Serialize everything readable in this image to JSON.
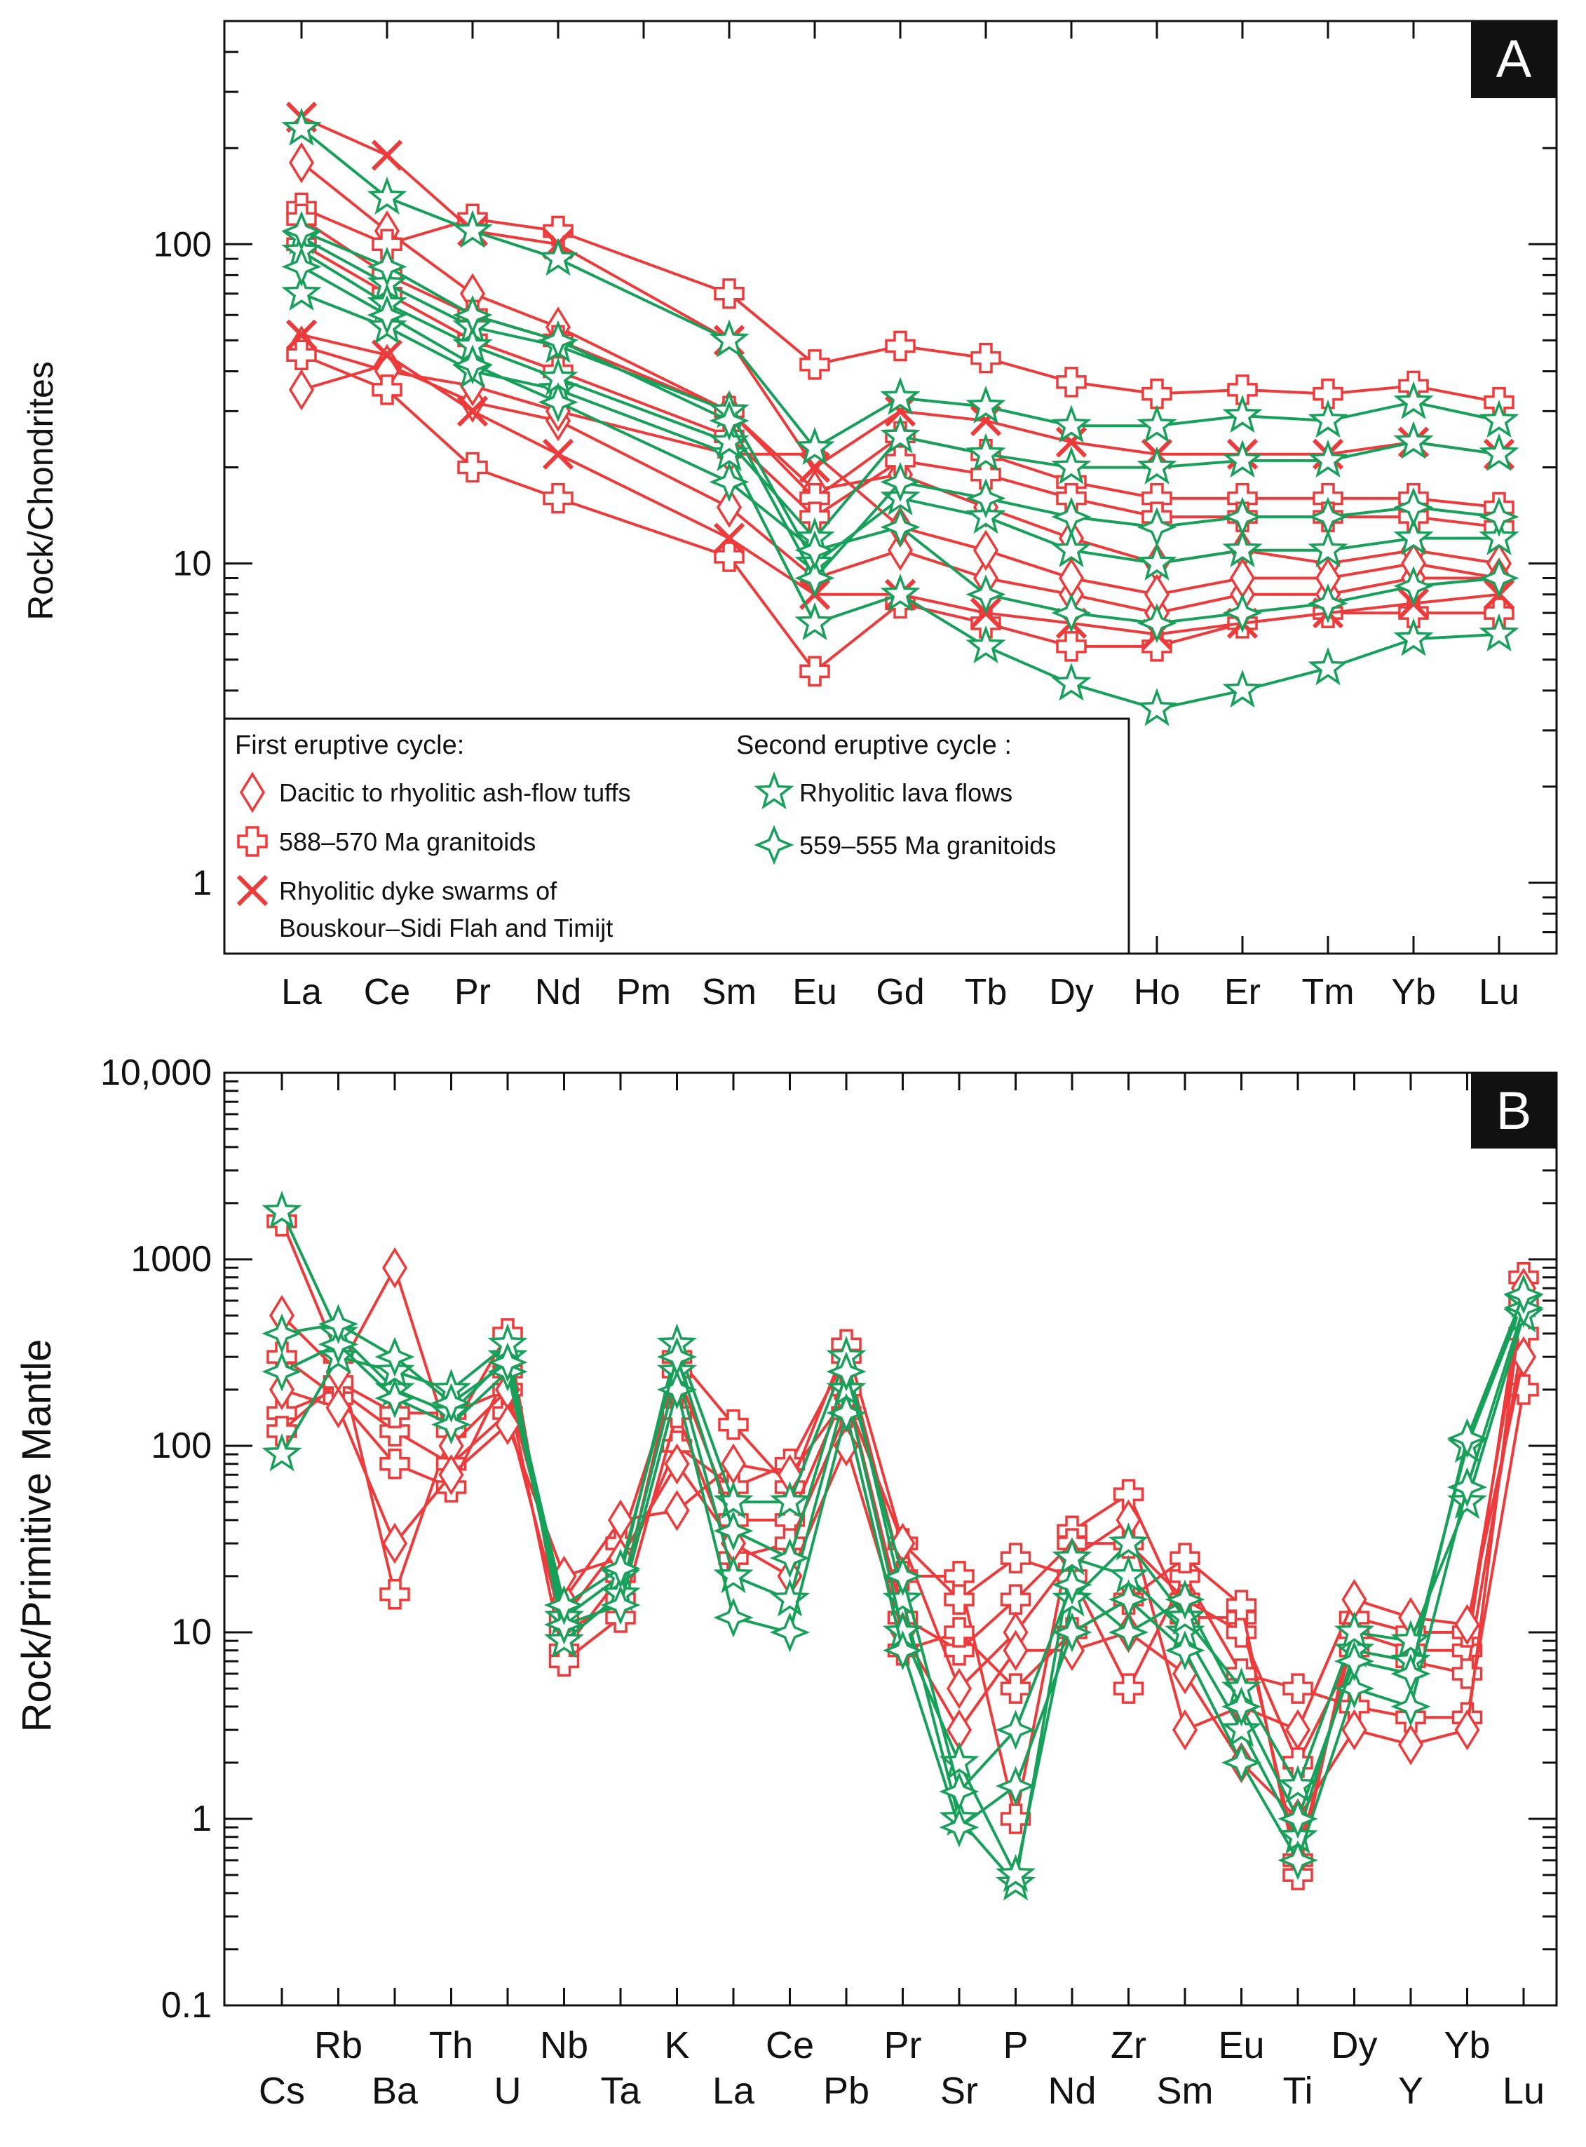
{
  "chart_data": [
    {
      "panel": "A",
      "type": "line",
      "scale": "log",
      "ylabel": "Rock/Chondrites",
      "ylim": [
        0.6,
        500
      ],
      "y_ticks": [
        1,
        10,
        100
      ],
      "y_tick_labels": [
        "1",
        "10",
        "100"
      ],
      "categories": [
        "La",
        "Ce",
        "Pr",
        "Nd",
        "Pm",
        "Sm",
        "Eu",
        "Gd",
        "Tb",
        "Dy",
        "Ho",
        "Er",
        "Tm",
        "Yb",
        "Lu"
      ],
      "legend": {
        "first_cycle_title": "First eruptive cycle:",
        "second_cycle_title": "Second eruptive cycle :",
        "entries": [
          {
            "label": "Dacitic to rhyolitic ash-flow tuffs",
            "marker": "diamond",
            "color": "#ed3b3b"
          },
          {
            "label": "588–570 Ma granitoids",
            "marker": "plus",
            "color": "#ed3b3b"
          },
          {
            "label_line1": "Rhyolitic dyke swarms of",
            "label_line2": "Bouskour–Sidi Flah and Timijt",
            "marker": "cross",
            "color": "#ed3b3b"
          },
          {
            "label": "Rhyolitic lava flows",
            "marker": "star",
            "color": "#17a05a"
          },
          {
            "label": "559–555 Ma granitoids",
            "marker": "plusdiamond",
            "color": "#17a05a"
          }
        ]
      },
      "series": [
        {
          "group": "Dacitic to rhyolitic ash-flow tuffs",
          "marker": "diamond",
          "color": "#ed3b3b",
          "values": [
            180,
            110,
            70,
            55,
            null,
            30,
            17,
            19,
            15,
            12,
            10,
            11,
            10,
            11,
            10
          ]
        },
        {
          "group": "Dacitic to rhyolitic ash-flow tuffs",
          "marker": "diamond",
          "color": "#ed3b3b",
          "values": [
            35,
            42,
            32,
            28,
            null,
            15,
            9,
            11,
            9,
            8,
            7,
            8,
            8,
            9,
            9
          ]
        },
        {
          "group": "Dacitic to rhyolitic ash-flow tuffs",
          "marker": "diamond",
          "color": "#ed3b3b",
          "values": [
            48,
            40,
            36,
            30,
            null,
            22,
            22,
            13,
            11,
            9,
            8,
            9,
            9,
            10,
            9
          ]
        },
        {
          "group": "588–570 Ma granitoids",
          "marker": "plus",
          "color": "#ed3b3b",
          "values": [
            130,
            100,
            120,
            110,
            null,
            70,
            42,
            48,
            44,
            37,
            34,
            35,
            34,
            36,
            32
          ]
        },
        {
          "group": "588–570 Ma granitoids",
          "marker": "plus",
          "color": "#ed3b3b",
          "values": [
            45,
            35,
            20,
            16,
            null,
            10.5,
            4.6,
            7.5,
            6.5,
            5.5,
            5.5,
            6.5,
            7,
            7,
            7
          ]
        },
        {
          "group": "588–570 Ma granitoids",
          "marker": "plus",
          "color": "#ed3b3b",
          "values": [
            120,
            80,
            60,
            50,
            null,
            30,
            16,
            25,
            22,
            18,
            16,
            16,
            16,
            16,
            15
          ]
        },
        {
          "group": "588–570 Ma granitoids",
          "marker": "plus",
          "color": "#ed3b3b",
          "values": [
            100,
            70,
            50,
            40,
            null,
            25,
            14,
            21,
            19,
            16,
            14,
            14,
            14,
            14,
            13
          ]
        },
        {
          "group": "Rhyolitic dyke swarms of Bouskour–Sidi Flah and Timijt",
          "marker": "cross",
          "color": "#ed3b3b",
          "values": [
            250,
            190,
            110,
            100,
            null,
            50,
            20,
            30,
            28,
            24,
            22,
            22,
            22,
            24,
            22
          ]
        },
        {
          "group": "Rhyolitic dyke swarms of Bouskour–Sidi Flah and Timijt",
          "marker": "cross",
          "color": "#ed3b3b",
          "values": [
            52,
            45,
            30,
            22,
            null,
            12,
            8,
            8,
            7,
            6.5,
            6,
            6.5,
            7,
            7.5,
            8
          ]
        },
        {
          "group": "Rhyolitic lava flows",
          "marker": "star",
          "color": "#17a05a",
          "values": [
            230,
            140,
            110,
            90,
            null,
            50,
            23,
            33,
            31,
            27,
            27,
            29,
            28,
            32,
            28
          ]
        },
        {
          "group": "Rhyolitic lava flows",
          "marker": "star",
          "color": "#17a05a",
          "values": [
            70,
            55,
            40,
            35,
            null,
            22,
            6.5,
            8,
            5.5,
            4.2,
            3.5,
            4,
            4.7,
            5.8,
            6
          ]
        },
        {
          "group": "Rhyolitic lava flows",
          "marker": "star",
          "color": "#17a05a",
          "values": [
            105,
            75,
            55,
            48,
            null,
            30,
            10,
            16,
            14,
            11,
            10,
            11,
            11,
            12,
            12
          ]
        },
        {
          "group": "Rhyolitic lava flows",
          "marker": "star",
          "color": "#17a05a",
          "values": [
            95,
            65,
            48,
            38,
            null,
            24,
            12,
            25,
            22,
            20,
            20,
            21,
            21,
            24,
            22
          ]
        },
        {
          "group": "559–555 Ma granitoids",
          "marker": "plusdiamond",
          "color": "#17a05a",
          "values": [
            110,
            85,
            60,
            50,
            null,
            28,
            9,
            18,
            16,
            14,
            13,
            14,
            14,
            15,
            14
          ]
        },
        {
          "group": "559–555 Ma granitoids",
          "marker": "plusdiamond",
          "color": "#17a05a",
          "values": [
            85,
            60,
            42,
            32,
            null,
            18,
            11,
            13,
            8,
            7,
            6.5,
            7,
            7.5,
            8.5,
            9
          ]
        }
      ]
    },
    {
      "panel": "B",
      "type": "line",
      "scale": "log",
      "ylabel": "Rock/Primitive Mantle",
      "ylim": [
        0.1,
        10000
      ],
      "y_ticks": [
        0.1,
        1,
        10,
        100,
        1000,
        10000
      ],
      "y_tick_labels": [
        "0.1",
        "1",
        "10",
        "100",
        "1000",
        "10,000"
      ],
      "categories": [
        "Cs",
        "Rb",
        "Ba",
        "Th",
        "U",
        "Nb",
        "Ta",
        "K",
        "La",
        "Ce",
        "Pb",
        "Pr",
        "Sr",
        "P",
        "Nd",
        "Zr",
        "Sm",
        "Eu",
        "Ti",
        "Dy",
        "Y",
        "Yb",
        "Lu"
      ],
      "series": [
        {
          "marker": "plus",
          "color": "#ed3b3b",
          "values": [
            1600,
            300,
            16,
            120,
            400,
            8,
            20,
            100,
            60,
            80,
            300,
            20,
            20,
            1,
            35,
            55,
            12,
            12,
            0.6,
            10,
            8,
            8,
            800
          ]
        },
        {
          "marker": "plus",
          "color": "#ed3b3b",
          "values": [
            150,
            200,
            120,
            80,
            150,
            10,
            15,
            300,
            130,
            60,
            350,
            30,
            15,
            25,
            20,
            5,
            20,
            6,
            5,
            4,
            3.5,
            3.5,
            200
          ]
        },
        {
          "marker": "plus",
          "color": "#ed3b3b",
          "values": [
            300,
            180,
            80,
            60,
            250,
            12,
            30,
            250,
            40,
            40,
            200,
            12,
            8,
            15,
            30,
            30,
            15,
            10,
            2,
            8,
            7,
            6,
            400
          ]
        },
        {
          "marker": "plus",
          "color": "#ed3b3b",
          "values": [
            120,
            220,
            150,
            150,
            200,
            7,
            12,
            150,
            25,
            30,
            150,
            8,
            10,
            5,
            10,
            15,
            25,
            14,
            0.5,
            12,
            10,
            10,
            600
          ]
        },
        {
          "marker": "diamond",
          "color": "#ed3b3b",
          "values": [
            500,
            250,
            900,
            100,
            200,
            15,
            40,
            45,
            80,
            70,
            180,
            30,
            5,
            10,
            25,
            40,
            3,
            4,
            3,
            15,
            12,
            11,
            300
          ]
        },
        {
          "marker": "diamond",
          "color": "#ed3b3b",
          "values": [
            200,
            160,
            30,
            70,
            130,
            20,
            25,
            80,
            30,
            20,
            100,
            10,
            3,
            8,
            8,
            10,
            6,
            2,
            1,
            3,
            2.5,
            3,
            700
          ]
        },
        {
          "marker": "star",
          "color": "#17a05a",
          "values": [
            1800,
            400,
            200,
            150,
            300,
            12,
            20,
            350,
            50,
            50,
            300,
            15,
            1,
            0.45,
            25,
            20,
            10,
            3,
            0.8,
            8,
            7,
            100,
            600
          ]
        },
        {
          "marker": "star",
          "color": "#17a05a",
          "values": [
            90,
            300,
            250,
            200,
            350,
            9,
            16,
            250,
            20,
            15,
            200,
            10,
            2,
            0.5,
            15,
            30,
            12,
            5,
            1.5,
            10,
            9,
            50,
            500
          ]
        },
        {
          "marker": "plusdiamond",
          "color": "#17a05a",
          "values": [
            250,
            350,
            180,
            130,
            250,
            11,
            14,
            200,
            12,
            10,
            150,
            8,
            0.9,
            1.5,
            10,
            15,
            8,
            2,
            0.6,
            5,
            4,
            60,
            550
          ]
        },
        {
          "marker": "plusdiamond",
          "color": "#17a05a",
          "values": [
            400,
            450,
            300,
            170,
            280,
            14,
            22,
            300,
            35,
            25,
            250,
            20,
            1.4,
            3,
            18,
            10,
            15,
            4,
            1,
            7,
            6,
            110,
            650
          ]
        }
      ]
    }
  ],
  "panels": {
    "A": {
      "label": "A"
    },
    "B": {
      "label": "B"
    }
  }
}
